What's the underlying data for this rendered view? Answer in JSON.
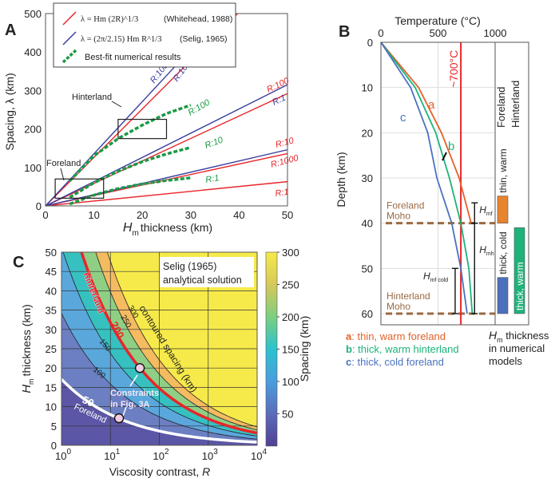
{
  "colors": {
    "red": "#e8262a",
    "blue": "#3a3fa0",
    "green": "#1a9a45",
    "orange": "#e2622a",
    "b_green": "#1db37a",
    "c_blue": "#4a72c0",
    "brown": "#9a6a42"
  },
  "chart_data": [
    {
      "panel": "A",
      "type": "line",
      "xlabel_italic": "H",
      "xlabel_sub": "m",
      "xlabel": "thickness (km)",
      "ylabel": "Spacing, λ (km)",
      "xlim": [
        0,
        50
      ],
      "ylim": [
        0,
        500
      ],
      "xticks": [
        "0",
        "10",
        "20",
        "30",
        "40",
        "50"
      ],
      "yticks": [
        "0",
        "100",
        "200",
        "300",
        "400",
        "500"
      ],
      "legend": [
        {
          "label": "λ = Hm (2R)^1/3",
          "formula_lhs": "λ = ",
          "formula_h": "H",
          "formula_m": "m",
          "formula_rhs": " (2R)",
          "formula_exp": "1/3",
          "source": "(Whitehead, 1988)",
          "color": "#e8262a"
        },
        {
          "label": "λ = (2π/2.15) Hm R^1/3",
          "formula_lhs": "λ = ",
          "formula_num": "2π",
          "formula_den": "2.15",
          "formula_h": "H",
          "formula_m": "m",
          "formula_rhs": " R",
          "formula_exp": "1/3",
          "source": "(Selig, 1965)",
          "color": "#3a3fa0"
        },
        {
          "label": "Best-fit numerical results",
          "color": "#1a9a45",
          "dashed": true
        }
      ],
      "series": [
        {
          "name": "R:1",
          "model": "Whitehead",
          "color": "#e8262a",
          "x": [
            0,
            50
          ],
          "y": [
            0,
            63
          ]
        },
        {
          "name": "R:10",
          "model": "Whitehead",
          "color": "#e8262a",
          "x": [
            0,
            50
          ],
          "y": [
            0,
            136
          ]
        },
        {
          "name": "R:100",
          "model": "Whitehead",
          "color": "#e8262a",
          "x": [
            0,
            50
          ],
          "y": [
            0,
            292
          ]
        },
        {
          "name": "R:1000",
          "model": "Whitehead",
          "color": "#e8262a",
          "x": [
            0,
            39.7
          ],
          "y": [
            0,
            500
          ]
        },
        {
          "name": "R:1",
          "model": "Selig",
          "color": "#3a3fa0",
          "x": [
            0,
            50
          ],
          "y": [
            0,
            146
          ]
        },
        {
          "name": "R:10",
          "model": "Selig",
          "color": "#3a3fa0",
          "x": [
            0,
            50
          ],
          "y": [
            0,
            315
          ]
        },
        {
          "name": "R:100",
          "model": "Selig",
          "color": "#3a3fa0",
          "x": [
            0,
            36.9
          ],
          "y": [
            0,
            500
          ]
        },
        {
          "name": "R:1",
          "model": "Best-fit",
          "color": "#1a9a45",
          "x": [
            5,
            10,
            15,
            20,
            25,
            30
          ],
          "y": [
            5,
            28,
            45,
            57,
            66,
            73
          ]
        },
        {
          "name": "R:10",
          "model": "Best-fit",
          "color": "#1a9a45",
          "x": [
            5,
            10,
            15,
            20,
            25,
            30
          ],
          "y": [
            22,
            60,
            90,
            115,
            135,
            152
          ]
        },
        {
          "name": "R:100",
          "model": "Best-fit",
          "color": "#1a9a45",
          "x": [
            5,
            10,
            15,
            20,
            25,
            30
          ],
          "y": [
            65,
            130,
            175,
            210,
            240,
            262
          ]
        }
      ],
      "boxes": [
        {
          "label": "Foreland",
          "x": [
            2,
            12
          ],
          "y": [
            20,
            70
          ]
        },
        {
          "label": "Hinterland",
          "x": [
            15,
            25
          ],
          "y": [
            175,
            225
          ]
        }
      ]
    },
    {
      "panel": "B",
      "type": "line",
      "xlabel": "Temperature (°C)",
      "ylabel": "Depth (km)",
      "xlim": [
        0,
        1000
      ],
      "ylim": [
        0,
        62
      ],
      "xticks": [
        "0",
        "500",
        "1000"
      ],
      "yticks": [
        "0",
        "10",
        "20",
        "30",
        "40",
        "50",
        "60"
      ],
      "isotherm": {
        "value": 700,
        "label": "~700°C"
      },
      "series": [
        {
          "name": "a",
          "color": "#e2622a",
          "T": [
            0,
            330,
            530,
            685,
            790
          ],
          "depth": [
            0,
            10,
            20,
            30,
            40
          ]
        },
        {
          "name": "b",
          "color": "#1db37a",
          "T": [
            0,
            300,
            480,
            600,
            700,
            770,
            800
          ],
          "depth": [
            0,
            10,
            20,
            30,
            40,
            50,
            60
          ]
        },
        {
          "name": "c",
          "color": "#4a72c0",
          "T": [
            0,
            260,
            410,
            490,
            620,
            700,
            755
          ],
          "depth": [
            0,
            10,
            20,
            30,
            40,
            50,
            60
          ]
        }
      ],
      "moho": [
        {
          "line1": "Foreland",
          "line2": "Moho",
          "depth": 40
        },
        {
          "line1": "Hinterland",
          "line2": "Moho",
          "depth": 60
        }
      ],
      "brackets": [
        {
          "h": "H",
          "sub": "mf",
          "top": 35.5,
          "bottom": 40,
          "T": 820
        },
        {
          "h": "H",
          "sub": "mh",
          "top": 40,
          "bottom": 60,
          "T": 820
        },
        {
          "h": "H",
          "sub": "mf cold",
          "top": 50,
          "bottom": 60,
          "T": 650
        }
      ],
      "side_columns": {
        "col1": "Foreland",
        "col2": "Hinterland"
      },
      "side_bars": [
        {
          "label": "thin, warm",
          "color": "#e8832e",
          "top": 34,
          "bottom": 40,
          "col": 1
        },
        {
          "label": "thick, cold",
          "color": "#4a6fbb",
          "top": 52,
          "bottom": 60,
          "col": 1
        },
        {
          "label": "thick, warm",
          "color": "#1db37a",
          "top": 41,
          "bottom": 60,
          "col": 2
        }
      ],
      "legend": [
        {
          "key": "a",
          "text": ": thin, warm foreland",
          "color": "#e2622a"
        },
        {
          "key": "b",
          "text": ": thick, warm hinterland",
          "color": "#1db37a"
        },
        {
          "key": "c",
          "text": ": thick, cold foreland",
          "color": "#4a72c0"
        }
      ],
      "side_caption": {
        "h": "H",
        "sub": "m",
        "line1": " thickness",
        "line2": "in numerical",
        "line3": "models"
      }
    },
    {
      "panel": "C",
      "type": "heatmap",
      "xlabel": "Viscosity contrast, ",
      "xlabel_italic": "R",
      "ylabel_italic": "H",
      "ylabel_sub": "m",
      "ylabel": "thickness (km)",
      "xscale": "log",
      "xlim": [
        1,
        10000
      ],
      "ylim": [
        0,
        50
      ],
      "xticks": [
        {
          "base": "10",
          "exp": "0"
        },
        {
          "base": "10",
          "exp": "1"
        },
        {
          "base": "10",
          "exp": "2"
        },
        {
          "base": "10",
          "exp": "3"
        },
        {
          "base": "10",
          "exp": "4"
        }
      ],
      "yticks": [
        "0",
        "5",
        "10",
        "15",
        "20",
        "25",
        "30",
        "35",
        "40",
        "45",
        "50"
      ],
      "grid": true,
      "annotation": {
        "line1": "Selig (1965)",
        "line2": "analytical solution"
      },
      "contour_levels": [
        50,
        100,
        150,
        200,
        250,
        300
      ],
      "contour_labels": [
        "50",
        "100",
        "150",
        "200",
        "250",
        "300"
      ],
      "band_colors": [
        "#5b56a5",
        "#6b7fc2",
        "#5aa7dc",
        "#36c1c0",
        "#8fcf85",
        "#f4bb60",
        "#f6ea4a"
      ],
      "contour_title": "contoured spacing (km)",
      "region_labels": {
        "hinterland": "Hinterland",
        "foreland": "Foreland"
      },
      "points": [
        {
          "R": 15,
          "Hm": 7
        },
        {
          "R": 40,
          "Hm": 20
        }
      ],
      "points_label": {
        "line1": "Constraints",
        "line2": "in Fig. 3A"
      },
      "colorbar": {
        "label": "Spacing (km)",
        "ticks": [
          "50",
          "100",
          "150",
          "200",
          "250",
          "300"
        ],
        "range": [
          0,
          300
        ]
      }
    }
  ]
}
